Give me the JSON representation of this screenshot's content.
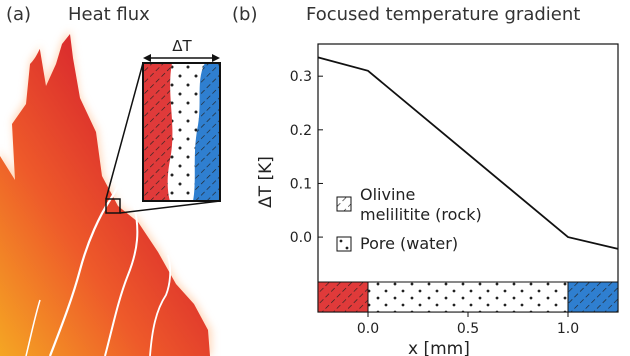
{
  "panel_a": {
    "label": "(a)",
    "title": "Heat flux",
    "inset_label": "ΔT"
  },
  "panel_b": {
    "label": "(b)",
    "title": "Focused temperature gradient"
  },
  "legend": {
    "rock_line1": "Olivine",
    "rock_line2": "melilitite (rock)",
    "pore": "Pore (water)"
  },
  "colors": {
    "hot": "#e03a3a",
    "cold": "#2f7fd0",
    "line": "#111111"
  },
  "chart_data": {
    "type": "line",
    "xlabel": "x [mm]",
    "ylabel": "ΔT [K]",
    "xlim": [
      -0.25,
      1.25
    ],
    "ylim": [
      -0.08,
      0.36
    ],
    "x_ticks": [
      0.0,
      0.5,
      1.0
    ],
    "x_tick_labels": [
      "0.0",
      "0.5",
      "1.0"
    ],
    "y_ticks": [
      0.0,
      0.1,
      0.2,
      0.3
    ],
    "y_tick_labels": [
      "0.0",
      "0.1",
      "0.2",
      "0.3"
    ],
    "series": [
      {
        "x": [
          -0.25,
          0.0,
          1.0,
          1.25
        ],
        "y": [
          0.335,
          0.31,
          0.0,
          -0.022
        ]
      }
    ]
  }
}
